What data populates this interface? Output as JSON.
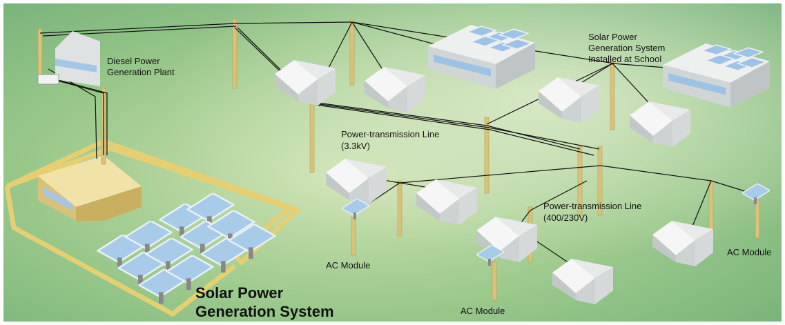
{
  "labels": [
    {
      "lines": [
        "Diesel Power",
        "Generation Plant"
      ]
    },
    {
      "lines": [
        "Solar Power",
        "Generation System",
        "Installed at School"
      ]
    },
    {
      "lines": [
        "Power-transmission Line",
        "(3.3kV)"
      ]
    },
    {
      "lines": [
        "Power-transmission Line",
        "(400/230V)"
      ]
    },
    {
      "lines": [
        "AC Module"
      ]
    },
    {
      "lines": [
        "AC Module"
      ]
    },
    {
      "lines": [
        "AC Module"
      ]
    },
    {
      "lines": [
        "Solar Power",
        "Generation System"
      ]
    }
  ]
}
